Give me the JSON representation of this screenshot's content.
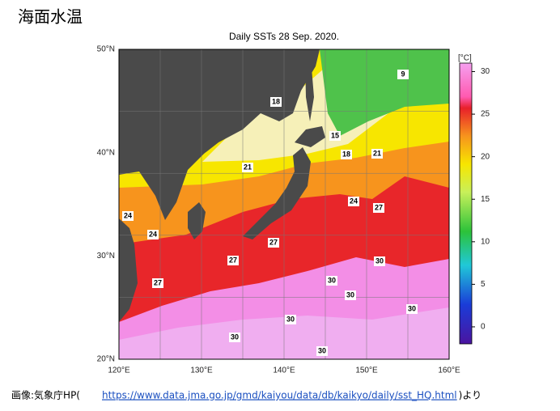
{
  "header": {
    "title": "海面水温"
  },
  "map": {
    "title": "Daily SSTs 28 Sep. 2020.",
    "lat_labels": [
      "50°N",
      "40°N",
      "30°N",
      "20°N"
    ],
    "lon_labels": [
      "120°E",
      "130°E",
      "140°E",
      "150°E",
      "160°E"
    ],
    "contour_labels": [
      "9",
      "18",
      "15",
      "18",
      "21",
      "21",
      "24",
      "27",
      "24",
      "24",
      "27",
      "27",
      "27",
      "30",
      "30",
      "30",
      "30",
      "30",
      "30",
      "30"
    ]
  },
  "colorbar": {
    "unit": "[°C]",
    "range": [
      -2,
      31
    ],
    "ticks": [
      30,
      25,
      20,
      15,
      10,
      5,
      0
    ]
  },
  "caption": {
    "prefix": "画像:気象庁HP(",
    "url": "https://www.data.jma.go.jp/gmd/kaiyou/data/db/kaikyo/daily/sst_HQ.html",
    "suffix": ")より"
  }
}
